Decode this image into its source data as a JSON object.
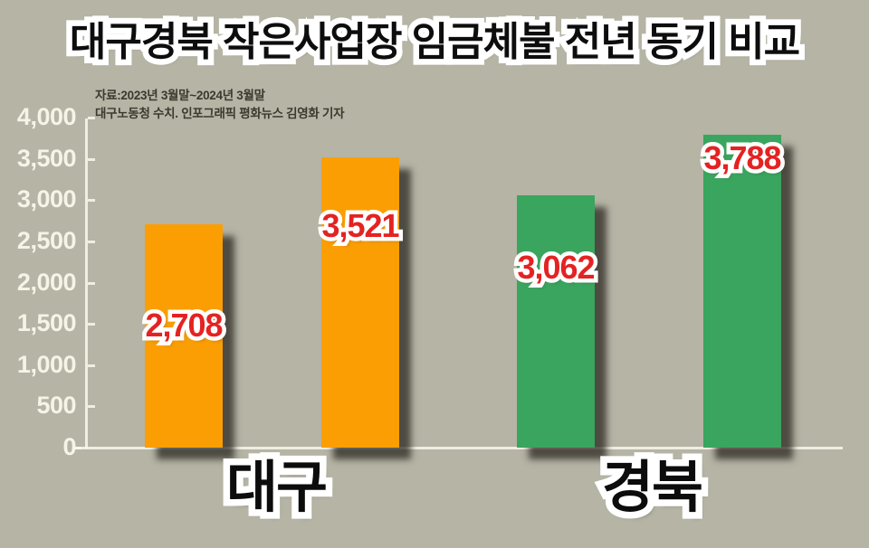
{
  "page": {
    "background_color": "#B5B4A5",
    "axis_color": "#F6F3E7"
  },
  "chart_data": {
    "type": "bar",
    "title": "대구경북 작은사업장 임금체불 전년 동기 비교",
    "source_note_lines": [
      "자료:2023년 3월말~2024년 3월말",
      "대구노동청 수치. 인포그래픽 평화뉴스 김영화 기자"
    ],
    "categories": [
      "대구",
      "경북"
    ],
    "groups": [
      {
        "id": "daegu",
        "category": "대구",
        "bar_color": "#FB9E04",
        "bars": [
          {
            "value": 2708,
            "label": "2,708"
          },
          {
            "value": 3521,
            "label": "3,521"
          }
        ]
      },
      {
        "id": "gyeongbuk",
        "category": "경북",
        "bar_color": "#3AA55E",
        "bars": [
          {
            "value": 3062,
            "label": "3,062"
          },
          {
            "value": 3788,
            "label": "3,788"
          }
        ]
      }
    ],
    "ylim": [
      0,
      4000
    ],
    "y_ticks": [
      {
        "value": 0,
        "label": "0"
      },
      {
        "value": 500,
        "label": "500"
      },
      {
        "value": 1000,
        "label": "1,000"
      },
      {
        "value": 1500,
        "label": "1,500"
      },
      {
        "value": 2000,
        "label": "2,000"
      },
      {
        "value": 2500,
        "label": "2,500"
      },
      {
        "value": 3000,
        "label": "3,000"
      },
      {
        "value": 3500,
        "label": "3,500"
      },
      {
        "value": 4000,
        "label": "4,000"
      }
    ],
    "grid": false,
    "legend": false,
    "value_label_color": "#E32322",
    "title_color": "#0d0d0d",
    "background_color": "#B5B4A5"
  }
}
